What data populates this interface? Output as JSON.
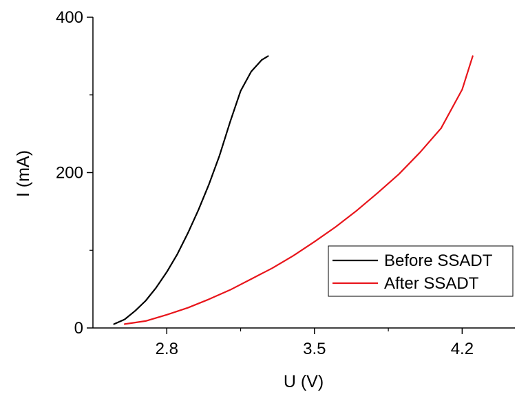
{
  "chart_data": {
    "type": "line",
    "xlabel": "U (V)",
    "ylabel": "I (mA)",
    "xlim": [
      2.45,
      4.45
    ],
    "ylim": [
      0,
      400
    ],
    "x_ticks": [
      2.8,
      3.5,
      4.2
    ],
    "x_tick_labels": [
      "2.8",
      "3.5",
      "4.2"
    ],
    "y_ticks": [
      0,
      200,
      400
    ],
    "y_tick_labels": [
      "0",
      "200",
      "400"
    ],
    "x_minor_ticks": [
      3.15,
      3.85
    ],
    "y_minor_ticks": [
      100,
      300
    ],
    "grid": false,
    "legend_position": "bottom-right",
    "series": [
      {
        "name": "Before SSADT",
        "color": "#000000",
        "x": [
          2.55,
          2.6,
          2.65,
          2.7,
          2.75,
          2.8,
          2.85,
          2.9,
          2.95,
          3.0,
          3.05,
          3.1,
          3.15,
          3.2,
          3.25,
          3.28
        ],
        "y": [
          5,
          11,
          22,
          35,
          52,
          72,
          95,
          122,
          152,
          185,
          222,
          265,
          305,
          330,
          345,
          350
        ]
      },
      {
        "name": "After SSADT",
        "color": "#e8151b",
        "x": [
          2.6,
          2.7,
          2.8,
          2.9,
          3.0,
          3.1,
          3.2,
          3.3,
          3.4,
          3.5,
          3.6,
          3.7,
          3.8,
          3.9,
          4.0,
          4.1,
          4.2,
          4.25
        ],
        "y": [
          5,
          9,
          17,
          26,
          37,
          49,
          63,
          77,
          93,
          111,
          130,
          151,
          174,
          198,
          226,
          257,
          307,
          350
        ]
      }
    ]
  }
}
